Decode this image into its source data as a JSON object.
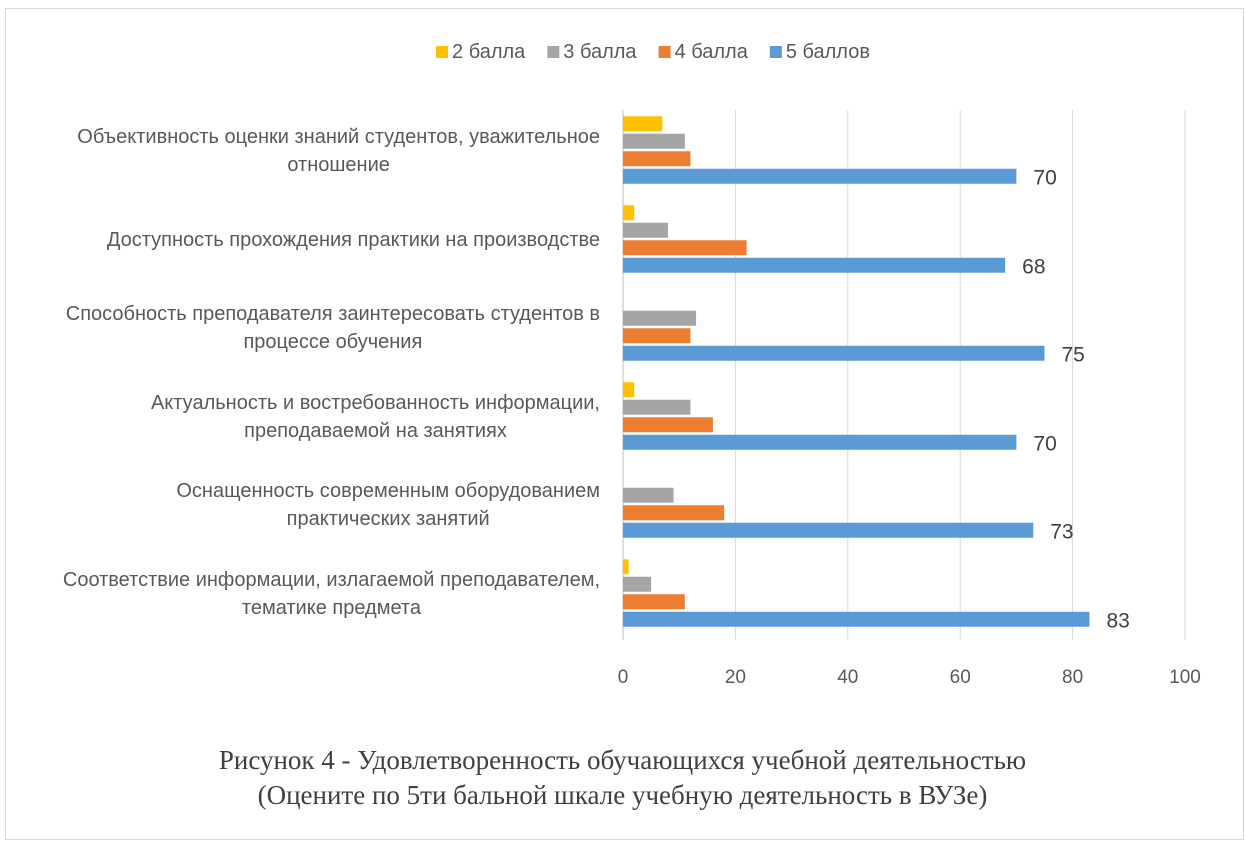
{
  "chart_data": {
    "type": "bar",
    "orientation": "horizontal",
    "categories": [
      [
        "Объективность оценки знаний студентов, уважительное",
        "отношение"
      ],
      [
        "Доступность прохождения практики на производстве"
      ],
      [
        "Способность преподавателя заинтересовать студентов в",
        "процессе обучения"
      ],
      [
        "Актуальность и востребованность информации,",
        "преподаваемой на занятиях"
      ],
      [
        "Оснащенность современным оборудованием",
        "практических занятий"
      ],
      [
        "Соответствие информации, излагаемой преподавателем,",
        "тематике предмета"
      ]
    ],
    "series": [
      {
        "name": "2 балла",
        "color": "#FFC000",
        "values": [
          7,
          2,
          0,
          2,
          0,
          1
        ]
      },
      {
        "name": "3 балла",
        "color": "#A5A5A5",
        "values": [
          11,
          8,
          13,
          12,
          9,
          5
        ]
      },
      {
        "name": "4 балла",
        "color": "#ED7D31",
        "values": [
          12,
          22,
          12,
          16,
          18,
          11
        ]
      },
      {
        "name": "5 баллов",
        "color": "#5B9BD5",
        "values": [
          70,
          68,
          75,
          70,
          73,
          83
        ],
        "data_labels": [
          "70",
          "68",
          "75",
          "70",
          "73",
          "83"
        ]
      }
    ],
    "xlim": [
      0,
      100
    ],
    "x_ticks": [
      "0",
      "20",
      "40",
      "60",
      "80",
      "100"
    ],
    "grid": true,
    "legend_position": "top"
  },
  "caption": {
    "line1": "Рисунок 4 - Удовлетворенность обучающихся учебной деятельностью",
    "line2": "(Оцените по 5ти бальной шкале учебную деятельность в ВУЗе)"
  }
}
